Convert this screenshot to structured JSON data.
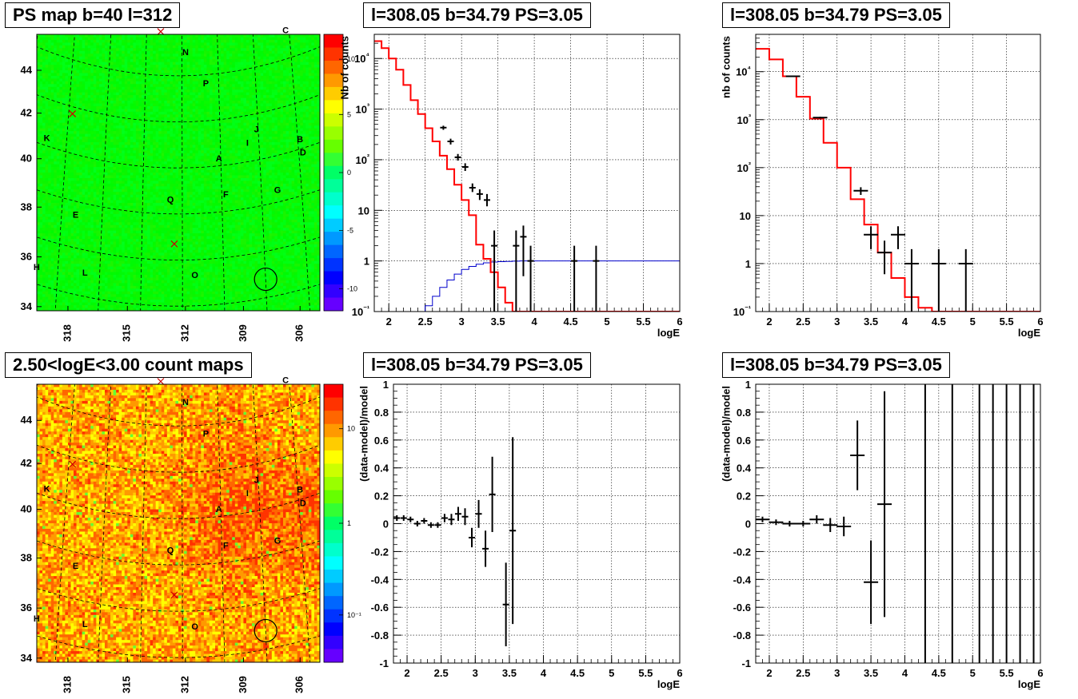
{
  "chart_data": [
    {
      "type": "heatmap",
      "id": "ps_map",
      "title": "PS map b=40 l=312",
      "x_ticks": [
        "318",
        "315",
        "312",
        "309",
        "306"
      ],
      "y_ticks": [
        "34",
        "36",
        "38",
        "40",
        "42",
        "44"
      ],
      "colorbar_ticks": [
        "10",
        "5",
        "0",
        "-5",
        "-10"
      ],
      "colorbar_range": [
        -12,
        12
      ],
      "sources": [
        {
          "label": "N",
          "l": 311.8,
          "b": 44.9
        },
        {
          "label": "C",
          "l": 306.2,
          "b": 45.1
        },
        {
          "label": "P",
          "l": 310.7,
          "b": 43.5
        },
        {
          "label": "J",
          "l": 308.1,
          "b": 41.2
        },
        {
          "label": "I",
          "l": 308.6,
          "b": 40.7
        },
        {
          "label": "B",
          "l": 305.9,
          "b": 40.3
        },
        {
          "label": "D",
          "l": 305.8,
          "b": 39.7
        },
        {
          "label": "A",
          "l": 310.1,
          "b": 40.2
        },
        {
          "label": "K",
          "l": 319.0,
          "b": 40.2
        },
        {
          "label": "Q",
          "l": 312.6,
          "b": 38.5
        },
        {
          "label": "F",
          "l": 309.8,
          "b": 38.6
        },
        {
          "label": "G",
          "l": 307.2,
          "b": 38.4
        },
        {
          "label": "E",
          "l": 317.3,
          "b": 37.3
        },
        {
          "label": "O",
          "l": 311.4,
          "b": 35.2
        },
        {
          "label": "L",
          "l": 316.7,
          "b": 34.9
        },
        {
          "label": "H",
          "l": 319.0,
          "b": 34.6
        }
      ],
      "crosses": [
        {
          "l": 313.2,
          "b": 45.9
        },
        {
          "l": 317.8,
          "b": 41.7
        },
        {
          "l": 312.4,
          "b": 36.7
        }
      ],
      "circle": {
        "l": 308.0,
        "b": 34.8
      }
    },
    {
      "type": "heatmap",
      "id": "count_map",
      "title": "2.50<logE<3.00 count maps",
      "x_ticks": [
        "318",
        "315",
        "312",
        "309",
        "306"
      ],
      "y_ticks": [
        "34",
        "36",
        "38",
        "40",
        "42",
        "44"
      ],
      "colorbar_ticks": [
        "10",
        "1",
        "10⁻¹"
      ],
      "colorbar_scale": "log"
    },
    {
      "type": "histogram",
      "id": "counts_1",
      "title": "l=308.05 b=34.79 PS=3.05",
      "xlabel": "logE",
      "ylabel": "Nb of counts",
      "xlim": [
        1.8,
        6.0
      ],
      "ylim": [
        0.1,
        30000
      ],
      "yscale": "log",
      "x_ticks": [
        "2",
        "2.5",
        "3",
        "3.5",
        "4",
        "4.5",
        "5",
        "5.5",
        "6"
      ],
      "y_ticks": [
        "10⁻¹",
        "1",
        "10",
        "10²",
        "10³",
        "10⁴"
      ],
      "bin_width": 0.1,
      "model_red": [
        22000,
        16000,
        10000,
        6000,
        3000,
        1500,
        800,
        420,
        230,
        120,
        65,
        32,
        16,
        8,
        2.1,
        1.1,
        0.6,
        0.3,
        0.15,
        0.1,
        0.1,
        0.1,
        0.1,
        0.1,
        0.1,
        0.1,
        0.1,
        0.1,
        0.1,
        0.1,
        0.1,
        0.1,
        0.1,
        0.1,
        0.1,
        0.1,
        0.1,
        0.1,
        0.1,
        0.1,
        0.1,
        0.1
      ],
      "model_blue": [
        0.02,
        0.02,
        0.02,
        0.02,
        0.02,
        0.02,
        0.1,
        0.13,
        0.2,
        0.3,
        0.42,
        0.55,
        0.68,
        0.78,
        0.86,
        0.92,
        0.95,
        0.97,
        0.98,
        0.99,
        1,
        1,
        1,
        1,
        1,
        1,
        1,
        1,
        1,
        1,
        1,
        1,
        1,
        1,
        1,
        1,
        1,
        1,
        1,
        1,
        1,
        1
      ],
      "data_points": [
        {
          "x": 2.75,
          "y": 430,
          "lo": 390,
          "hi": 470
        },
        {
          "x": 2.85,
          "y": 230,
          "lo": 200,
          "hi": 260
        },
        {
          "x": 2.95,
          "y": 112,
          "lo": 96,
          "hi": 130
        },
        {
          "x": 3.05,
          "y": 72,
          "lo": 60,
          "hi": 85
        },
        {
          "x": 3.15,
          "y": 28,
          "lo": 23,
          "hi": 34
        },
        {
          "x": 3.25,
          "y": 21,
          "lo": 16,
          "hi": 26
        },
        {
          "x": 3.35,
          "y": 16,
          "lo": 12,
          "hi": 21
        },
        {
          "x": 3.45,
          "y": 2,
          "lo": 0.1,
          "hi": 4
        },
        {
          "x": 3.75,
          "y": 2,
          "lo": 0.1,
          "hi": 4
        },
        {
          "x": 3.85,
          "y": 3,
          "lo": 0.5,
          "hi": 5
        },
        {
          "x": 3.95,
          "y": 1,
          "lo": 0.1,
          "hi": 2
        },
        {
          "x": 4.55,
          "y": 1,
          "lo": 0.1,
          "hi": 2
        },
        {
          "x": 4.85,
          "y": 1,
          "lo": 0.1,
          "hi": 2
        }
      ]
    },
    {
      "type": "histogram",
      "id": "counts_2",
      "title": "l=308.05 b=34.79 PS=3.05",
      "xlabel": "logE",
      "ylabel": "nb of counts",
      "xlim": [
        1.8,
        6.0
      ],
      "ylim": [
        0.1,
        60000
      ],
      "yscale": "log",
      "x_ticks": [
        "2",
        "2.5",
        "3",
        "3.5",
        "4",
        "4.5",
        "5",
        "5.5",
        "6"
      ],
      "y_ticks": [
        "10⁻¹",
        "1",
        "10",
        "10²",
        "10³",
        "10⁴"
      ],
      "bin_edges": [
        1.8,
        2.0,
        2.2,
        2.4,
        2.6,
        2.8,
        3.0,
        3.2,
        3.4,
        3.6,
        3.8,
        4.0,
        4.2,
        4.4,
        6.0
      ],
      "model_red": [
        30000,
        18000,
        8000,
        3000,
        1050,
        330,
        100,
        22,
        6.5,
        1.7,
        0.5,
        0.2,
        0.12,
        0.1
      ],
      "data_points": [
        {
          "x": 2.35,
          "y": 8000,
          "lo": 7800,
          "hi": 8200
        },
        {
          "x": 2.75,
          "y": 1100,
          "lo": 1050,
          "hi": 1150
        },
        {
          "x": 3.35,
          "y": 33,
          "lo": 27,
          "hi": 39
        },
        {
          "x": 3.5,
          "y": 4,
          "lo": 2,
          "hi": 6
        },
        {
          "x": 3.7,
          "y": 1.7,
          "lo": 0.6,
          "hi": 3
        },
        {
          "x": 3.9,
          "y": 4,
          "lo": 2,
          "hi": 6
        },
        {
          "x": 4.1,
          "y": 1,
          "lo": 0.1,
          "hi": 2
        },
        {
          "x": 4.5,
          "y": 1,
          "lo": 0.1,
          "hi": 2
        },
        {
          "x": 4.9,
          "y": 1,
          "lo": 0.1,
          "hi": 2
        }
      ]
    },
    {
      "type": "scatter",
      "id": "residual_1",
      "title": "l=308.05 b=34.79 PS=3.05",
      "xlabel": "logE",
      "ylabel": "(data-model)/model",
      "xlim": [
        1.8,
        6.0
      ],
      "ylim": [
        -1,
        1
      ],
      "x_ticks": [
        "2",
        "2.5",
        "3",
        "3.5",
        "4",
        "4.5",
        "5",
        "5.5",
        "6"
      ],
      "y_ticks": [
        "-1",
        "-0.8",
        "-0.6",
        "-0.4",
        "-0.2",
        "0",
        "0.2",
        "0.4",
        "0.6",
        "0.8",
        "1"
      ],
      "data_points": [
        {
          "x": 1.85,
          "y": 0.04,
          "e": 0.02
        },
        {
          "x": 1.95,
          "y": 0.04,
          "e": 0.02
        },
        {
          "x": 2.05,
          "y": 0.03,
          "e": 0.02
        },
        {
          "x": 2.15,
          "y": 0.0,
          "e": 0.02
        },
        {
          "x": 2.25,
          "y": 0.02,
          "e": 0.02
        },
        {
          "x": 2.35,
          "y": -0.01,
          "e": 0.02
        },
        {
          "x": 2.45,
          "y": -0.01,
          "e": 0.02
        },
        {
          "x": 2.55,
          "y": 0.04,
          "e": 0.03
        },
        {
          "x": 2.65,
          "y": 0.03,
          "e": 0.04
        },
        {
          "x": 2.75,
          "y": 0.07,
          "e": 0.05
        },
        {
          "x": 2.85,
          "y": 0.05,
          "e": 0.06
        },
        {
          "x": 2.95,
          "y": -0.1,
          "e": 0.07
        },
        {
          "x": 3.05,
          "y": 0.07,
          "e": 0.1
        },
        {
          "x": 3.15,
          "y": -0.18,
          "e": 0.13
        },
        {
          "x": 3.25,
          "y": 0.21,
          "e": 0.27
        },
        {
          "x": 3.45,
          "y": -0.58,
          "e": 0.3
        },
        {
          "x": 3.55,
          "y": -0.05,
          "e": 0.67
        }
      ]
    },
    {
      "type": "scatter",
      "id": "residual_2",
      "title": "l=308.05 b=34.79 PS=3.05",
      "xlabel": "logE",
      "ylabel": "(data-model)/model",
      "xlim": [
        1.8,
        6.0
      ],
      "ylim": [
        -1,
        1
      ],
      "x_ticks": [
        "2",
        "2.5",
        "3",
        "3.5",
        "4",
        "4.5",
        "5",
        "5.5",
        "6"
      ],
      "y_ticks": [
        "-1",
        "-0.8",
        "-0.6",
        "-0.4",
        "-0.2",
        "0",
        "0.2",
        "0.4",
        "0.6",
        "0.8",
        "1"
      ],
      "data_points": [
        {
          "x": 1.9,
          "y": 0.03,
          "e": 0.02
        },
        {
          "x": 2.1,
          "y": 0.01,
          "e": 0.02
        },
        {
          "x": 2.3,
          "y": 0.0,
          "e": 0.02
        },
        {
          "x": 2.5,
          "y": 0.0,
          "e": 0.02
        },
        {
          "x": 2.7,
          "y": 0.03,
          "e": 0.03
        },
        {
          "x": 2.9,
          "y": -0.01,
          "e": 0.05
        },
        {
          "x": 3.1,
          "y": -0.02,
          "e": 0.07
        },
        {
          "x": 3.3,
          "y": 0.49,
          "e": 0.25
        },
        {
          "x": 3.5,
          "y": -0.42,
          "e": 0.3
        },
        {
          "x": 3.7,
          "y": 0.14,
          "e": 0.81
        }
      ],
      "full_bars_x": [
        4.3,
        4.7,
        5.1,
        5.3,
        5.5,
        5.7,
        5.9
      ]
    }
  ]
}
